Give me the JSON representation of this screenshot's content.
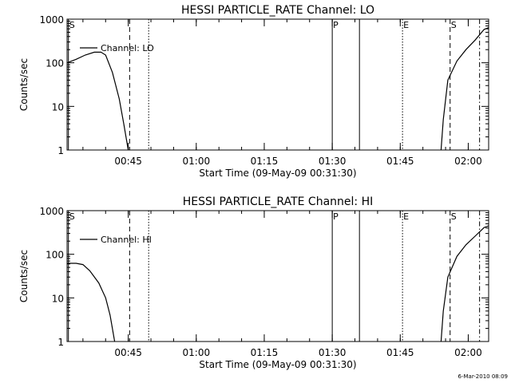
{
  "footer_timestamp": "6-Mar-2010 08:09",
  "chart_data": [
    {
      "type": "line",
      "title": "HESSI PARTICLE_RATE Channel: LO",
      "xlabel": "Start Time (09-May-09 00:31:30)",
      "ylabel": "Counts/sec",
      "yscale": "log",
      "ylim": [
        1,
        1000
      ],
      "xlim": [
        0,
        93
      ],
      "x_unit": "minutes since 00:31:30",
      "x_ticks": [
        {
          "label": "00:45",
          "x": 13.5
        },
        {
          "label": "01:00",
          "x": 28.5
        },
        {
          "label": "01:15",
          "x": 43.5
        },
        {
          "label": "01:30",
          "x": 58.5
        },
        {
          "label": "01:45",
          "x": 73.5
        },
        {
          "label": "02:00",
          "x": 88.5
        }
      ],
      "y_ticks": [
        {
          "label": "1",
          "y": 1
        },
        {
          "label": "10",
          "y": 10
        },
        {
          "label": "100",
          "y": 100
        },
        {
          "label": "1000",
          "y": 1000
        }
      ],
      "legend": "top-left",
      "series": [
        {
          "name": "Channel: LO",
          "segments": [
            [
              [
                0,
                100
              ],
              [
                2,
                120
              ],
              [
                4,
                150
              ],
              [
                6,
                175
              ],
              [
                7.5,
                175
              ],
              [
                8.5,
                150
              ],
              [
                10,
                60
              ],
              [
                11.5,
                15
              ],
              [
                12.5,
                4
              ],
              [
                13.5,
                1
              ]
            ],
            [
              [
                82.5,
                1
              ],
              [
                83,
                5
              ],
              [
                84,
                40
              ],
              [
                86,
                110
              ],
              [
                88,
                200
              ],
              [
                90,
                330
              ],
              [
                92,
                580
              ],
              [
                93,
                640
              ]
            ]
          ]
        }
      ],
      "markers": [
        {
          "label": "S",
          "x": 0.3,
          "style": "solid"
        },
        {
          "label": "",
          "x": 13.8,
          "style": "dashed"
        },
        {
          "label": "",
          "x": 18,
          "style": "dotted"
        },
        {
          "label": "P",
          "x": 58.5,
          "style": "solid"
        },
        {
          "label": "",
          "x": 64.5,
          "style": "solid"
        },
        {
          "label": "E",
          "x": 74,
          "style": "dotted"
        },
        {
          "label": "S",
          "x": 84.5,
          "style": "dashed"
        },
        {
          "label": "",
          "x": 91,
          "style": "dashdot"
        }
      ]
    },
    {
      "type": "line",
      "title": "HESSI PARTICLE_RATE Channel: HI",
      "xlabel": "Start Time (09-May-09 00:31:30)",
      "ylabel": "Counts/sec",
      "yscale": "log",
      "ylim": [
        1,
        1000
      ],
      "xlim": [
        0,
        93
      ],
      "x_unit": "minutes since 00:31:30",
      "x_ticks": [
        {
          "label": "00:45",
          "x": 13.5
        },
        {
          "label": "01:00",
          "x": 28.5
        },
        {
          "label": "01:15",
          "x": 43.5
        },
        {
          "label": "01:30",
          "x": 58.5
        },
        {
          "label": "01:45",
          "x": 73.5
        },
        {
          "label": "02:00",
          "x": 88.5
        }
      ],
      "y_ticks": [
        {
          "label": "1",
          "y": 1
        },
        {
          "label": "10",
          "y": 10
        },
        {
          "label": "100",
          "y": 100
        },
        {
          "label": "1000",
          "y": 1000
        }
      ],
      "legend": "top-left",
      "series": [
        {
          "name": "Channel: HI",
          "segments": [
            [
              [
                0,
                62
              ],
              [
                2,
                62
              ],
              [
                3.5,
                58
              ],
              [
                5,
                42
              ],
              [
                7,
                22
              ],
              [
                8.5,
                10
              ],
              [
                9.5,
                4
              ],
              [
                10.5,
                1
              ]
            ],
            [
              [
                82.5,
                1
              ],
              [
                83,
                5
              ],
              [
                84,
                30
              ],
              [
                86,
                90
              ],
              [
                88,
                165
              ],
              [
                90,
                260
              ],
              [
                92,
                410
              ],
              [
                93,
                450
              ]
            ]
          ]
        }
      ],
      "markers": [
        {
          "label": "S",
          "x": 0.3,
          "style": "solid"
        },
        {
          "label": "",
          "x": 13.8,
          "style": "dashed"
        },
        {
          "label": "",
          "x": 18,
          "style": "dotted"
        },
        {
          "label": "P",
          "x": 58.5,
          "style": "solid"
        },
        {
          "label": "",
          "x": 64.5,
          "style": "solid"
        },
        {
          "label": "E",
          "x": 74,
          "style": "dotted"
        },
        {
          "label": "S",
          "x": 84.5,
          "style": "dashed"
        },
        {
          "label": "",
          "x": 91,
          "style": "dashdot"
        }
      ]
    }
  ]
}
